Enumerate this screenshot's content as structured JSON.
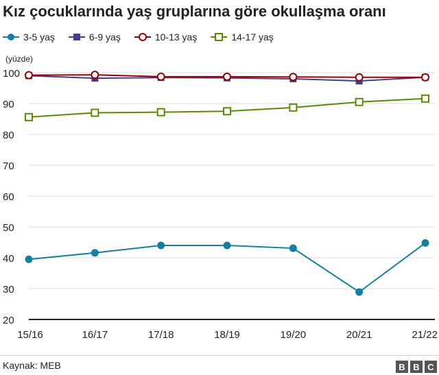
{
  "chart_data": {
    "type": "line",
    "title": "Kız çocuklarında yaş gruplarına göre okullaşma oranı",
    "ylabel": "(yüzde)",
    "xlabel": "",
    "categories": [
      "15/16",
      "16/17",
      "17/18",
      "18/19",
      "19/20",
      "20/21",
      "21/22"
    ],
    "ylim": [
      20,
      100
    ],
    "yticks": [
      20,
      30,
      40,
      50,
      60,
      70,
      80,
      90,
      100
    ],
    "grid": true,
    "legend_position": "top-left",
    "series": [
      {
        "name": "3-5 yaş",
        "values": [
          39.5,
          41.6,
          44.0,
          44.0,
          43.1,
          28.9,
          44.8
        ],
        "color": "#1380a1",
        "marker": "filled-circle"
      },
      {
        "name": "6-9 yaş",
        "values": [
          99.0,
          98.2,
          98.4,
          98.3,
          98.0,
          97.3,
          98.5
        ],
        "color": "#4d3a8d",
        "marker": "filled-square"
      },
      {
        "name": "10-13 yaş",
        "values": [
          99.2,
          99.3,
          98.7,
          98.7,
          98.6,
          98.5,
          98.5
        ],
        "color": "#990000",
        "marker": "open-circle"
      },
      {
        "name": "14-17 yaş",
        "values": [
          85.6,
          87.0,
          87.2,
          87.5,
          88.7,
          90.5,
          91.6
        ],
        "color": "#588c00",
        "marker": "open-square"
      }
    ]
  },
  "footer": {
    "source": "Kaynak: MEB",
    "logo": [
      "B",
      "B",
      "C"
    ]
  }
}
